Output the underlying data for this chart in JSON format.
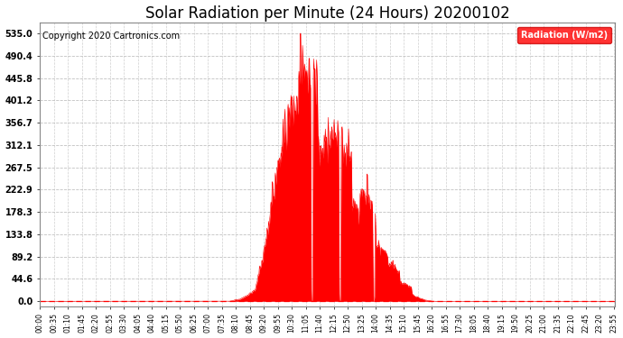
{
  "title": "Solar Radiation per Minute (24 Hours) 20200102",
  "copyright": "Copyright 2020 Cartronics.com",
  "legend_label": "Radiation (W/m2)",
  "yticks": [
    0.0,
    44.6,
    89.2,
    133.8,
    178.3,
    222.9,
    267.5,
    312.1,
    356.7,
    401.2,
    445.8,
    490.4,
    535.0
  ],
  "ymax": 535.0,
  "fill_color": "#ff0000",
  "line_color": "#ff0000",
  "background_color": "#ffffff",
  "grid_color": "#bbbbbb",
  "title_fontsize": 12,
  "copyright_fontsize": 7,
  "legend_bg": "#ff0000",
  "legend_text_color": "#ffffff",
  "sunrise_minute": 480,
  "sunset_minute": 990,
  "x_tick_step": 35
}
